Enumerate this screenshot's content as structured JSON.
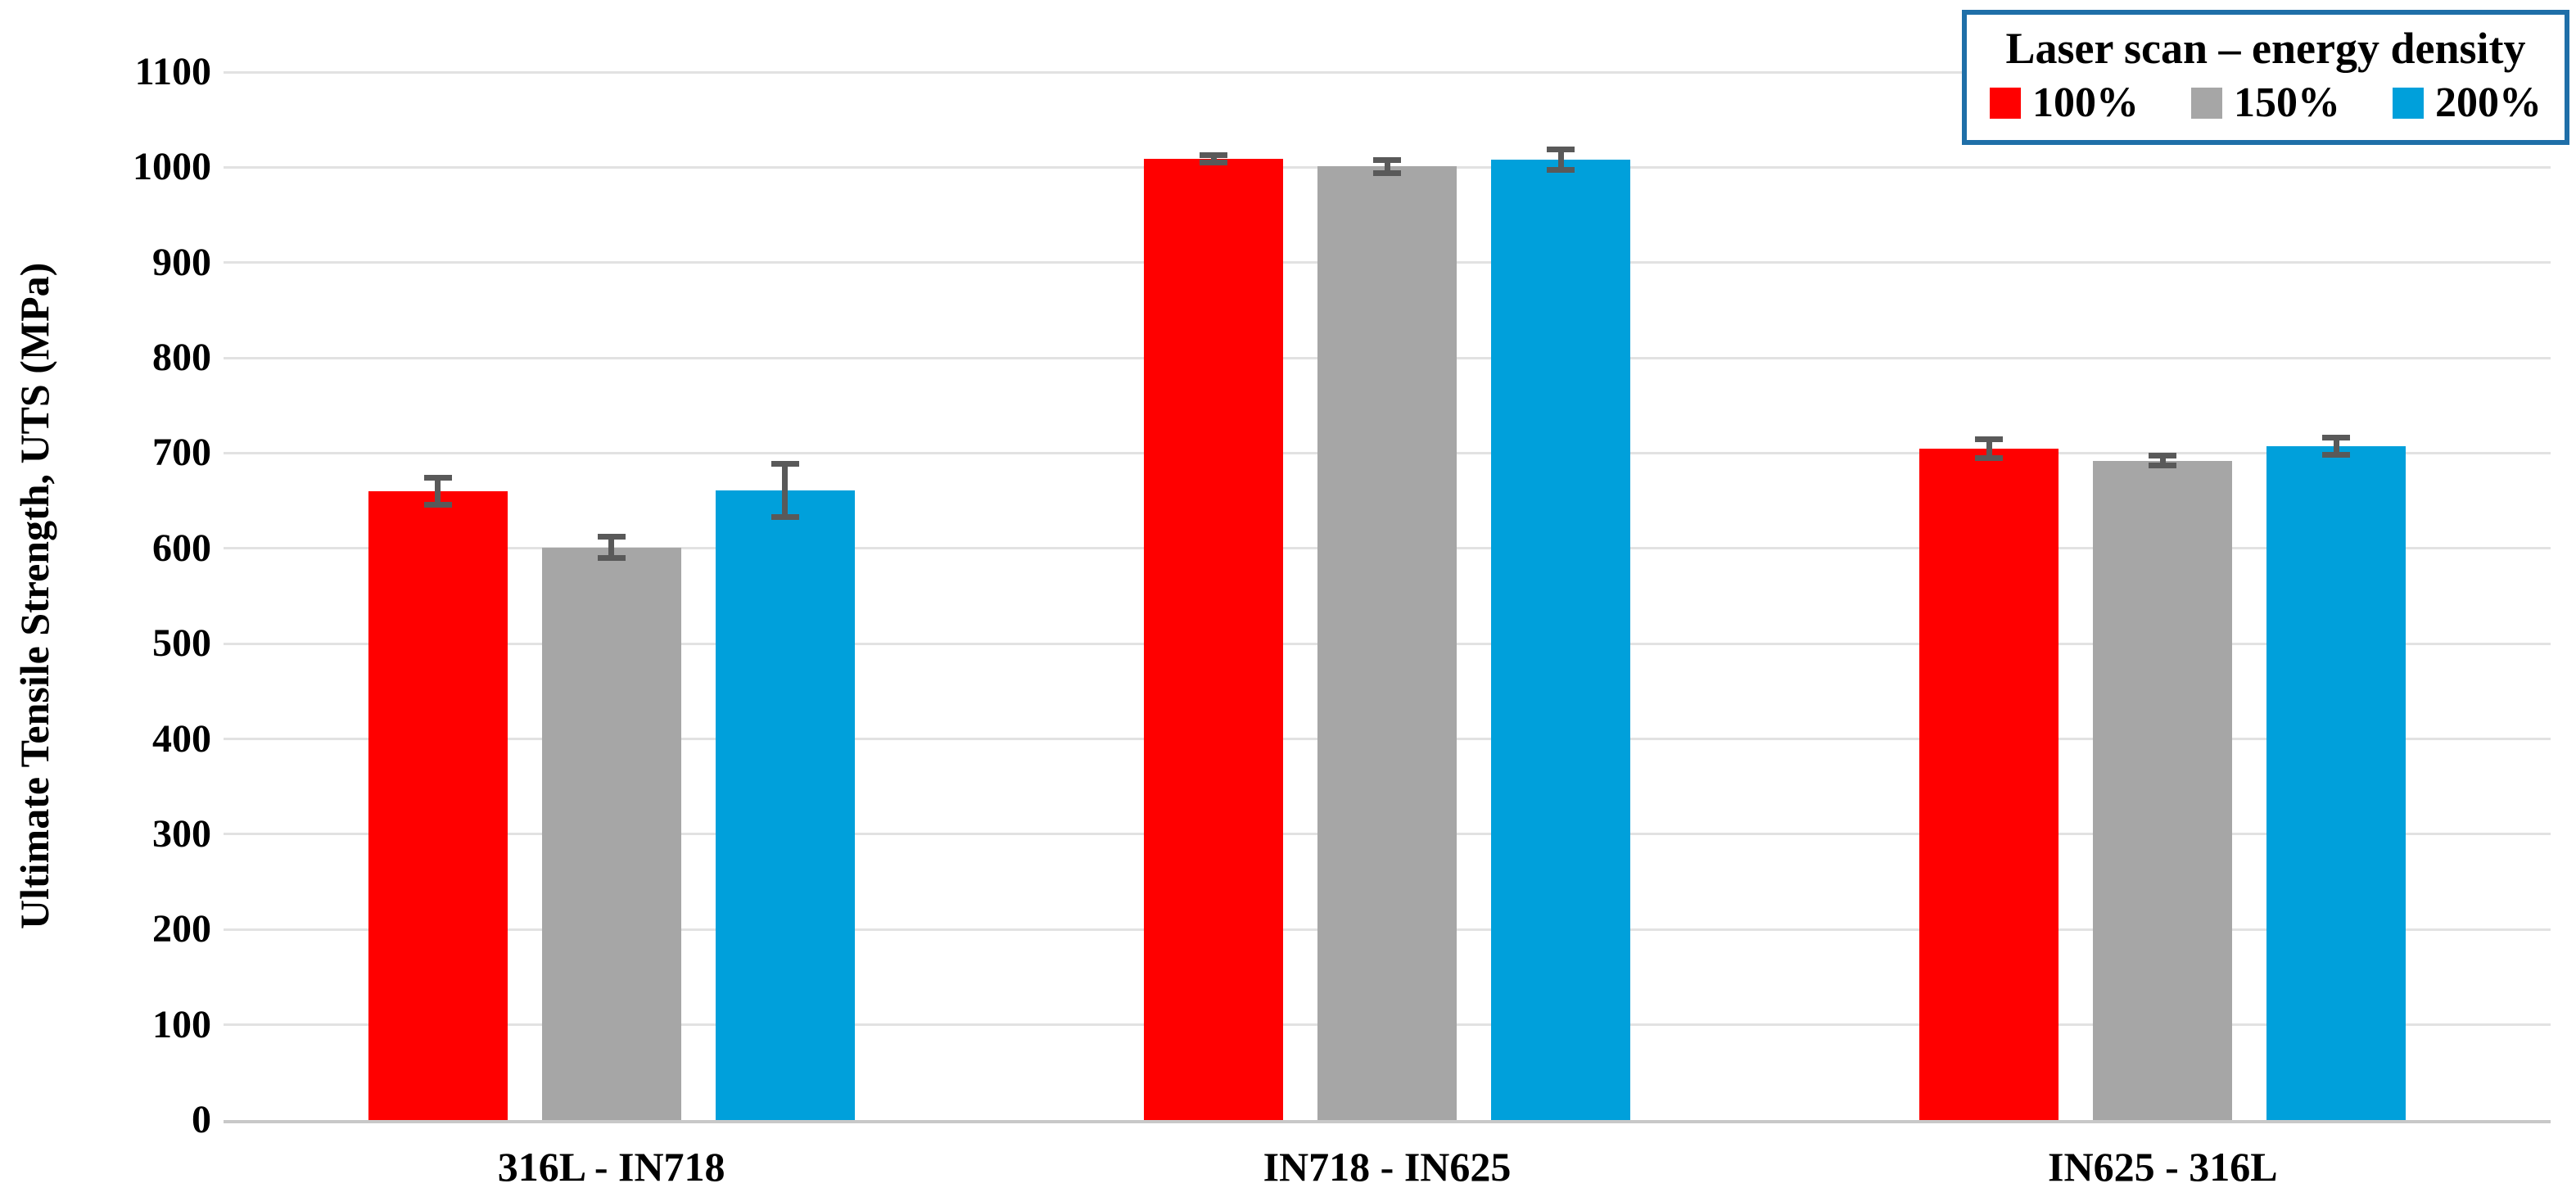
{
  "chart_data": {
    "type": "bar",
    "title": "",
    "xlabel": "",
    "ylabel": "Ultimate Tensile Strength, UTS (MPa)",
    "ylim": [
      0,
      1100
    ],
    "ytick_step": 100,
    "grid": true,
    "legend_position": "top-right",
    "categories": [
      "316L - IN718",
      "IN718 - IN625",
      "IN625 - 316L"
    ],
    "series": [
      {
        "name": "100%",
        "color": "#ff0000",
        "values": [
          660,
          1009,
          705
        ],
        "errors": [
          17,
          7,
          13
        ]
      },
      {
        "name": "150%",
        "color": "#a6a6a6",
        "values": [
          601,
          1001,
          692
        ],
        "errors": [
          14,
          10,
          8
        ]
      },
      {
        "name": "200%",
        "color": "#00a0db",
        "values": [
          661,
          1008,
          707
        ],
        "errors": [
          31,
          14,
          12
        ]
      }
    ],
    "error_bar_color": "#595959"
  },
  "legend": {
    "title": "Laser scan – energy density",
    "border_color": "#1f6fa8"
  },
  "colors": {
    "gridline": "#e2e2e2",
    "axis_line": "#c8c8c8",
    "background": "#ffffff"
  }
}
